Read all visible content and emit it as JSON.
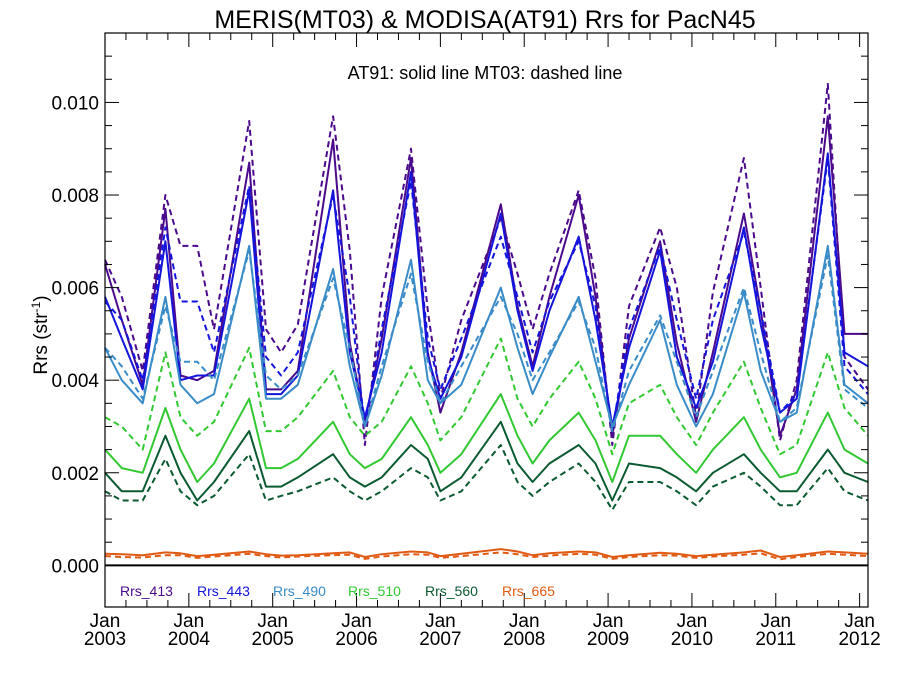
{
  "chart_data": {
    "type": "line",
    "title": "MERIS(MT03) & MODISA(AT91)  Rrs for PacN45",
    "ylabel_main": "Rrs (str",
    "ylabel_sup": "-1",
    "ylabel_close": ")",
    "annotation": "AT91: solid line   MT03: dashed line",
    "ylim": [
      -0.0009,
      0.0115
    ],
    "yticks": [
      "0.000",
      "0.002",
      "0.004",
      "0.006",
      "0.008",
      "0.010"
    ],
    "ytick_values": [
      0,
      0.002,
      0.004,
      0.006,
      0.008,
      0.01
    ],
    "xlim": [
      2003.0,
      2012.1
    ],
    "xticks": [
      {
        "month": "Jan",
        "year": "2003",
        "value": 2003
      },
      {
        "month": "Jan",
        "year": "2004",
        "value": 2004
      },
      {
        "month": "Jan",
        "year": "2005",
        "value": 2005
      },
      {
        "month": "Jan",
        "year": "2006",
        "value": 2006
      },
      {
        "month": "Jan",
        "year": "2007",
        "value": 2007
      },
      {
        "month": "Jan",
        "year": "2008",
        "value": 2008
      },
      {
        "month": "Jan",
        "year": "2009",
        "value": 2009
      },
      {
        "month": "Jan",
        "year": "2010",
        "value": 2010
      },
      {
        "month": "Jan",
        "year": "2011",
        "value": 2011
      },
      {
        "month": "Jan",
        "year": "2012",
        "value": 2012
      }
    ],
    "grid": false,
    "legend_position": "bottom-left",
    "series": [
      {
        "name": "Rrs_413",
        "color": "#4b0a8c",
        "x": [
          2003.0,
          2003.2,
          2003.45,
          2003.72,
          2003.9,
          2004.1,
          2004.3,
          2004.72,
          2004.92,
          2005.1,
          2005.3,
          2005.72,
          2005.92,
          2006.1,
          2006.3,
          2006.65,
          2006.85,
          2007.0,
          2007.25,
          2007.72,
          2007.92,
          2008.1,
          2008.3,
          2008.65,
          2008.85,
          2009.05,
          2009.25,
          2009.62,
          2009.82,
          2010.05,
          2010.25,
          2010.62,
          2010.82,
          2011.05,
          2011.25,
          2011.62,
          2011.82,
          2012.1
        ],
        "solid": [
          0.0065,
          0.0053,
          0.0039,
          0.0077,
          0.0041,
          0.004,
          0.0042,
          0.0087,
          0.0038,
          0.0038,
          0.0042,
          0.0092,
          0.0048,
          0.0031,
          0.0049,
          0.0088,
          0.0046,
          0.0033,
          0.0046,
          0.0078,
          0.0056,
          0.0043,
          0.0058,
          0.008,
          0.0058,
          0.0028,
          0.0049,
          0.007,
          0.0048,
          0.0031,
          0.0046,
          0.0076,
          0.0055,
          0.0028,
          0.0038,
          0.0097,
          0.005,
          0.005
        ],
        "dashed": [
          0.0066,
          0.0058,
          0.0042,
          0.008,
          0.0069,
          0.0069,
          0.0051,
          0.0096,
          0.0051,
          0.0046,
          0.0052,
          0.0097,
          0.0068,
          0.0026,
          0.0058,
          0.009,
          0.0055,
          0.0036,
          0.0053,
          0.0075,
          0.0063,
          0.0051,
          0.0063,
          0.0081,
          0.0062,
          0.0026,
          0.0056,
          0.0073,
          0.006,
          0.0032,
          0.0059,
          0.0088,
          0.006,
          0.0027,
          0.004,
          0.0104,
          0.0045,
          0.0038
        ]
      },
      {
        "name": "Rrs_443",
        "color": "#1414dc",
        "x": [
          2003.0,
          2003.2,
          2003.45,
          2003.72,
          2003.9,
          2004.1,
          2004.3,
          2004.72,
          2004.92,
          2005.1,
          2005.3,
          2005.72,
          2005.92,
          2006.1,
          2006.3,
          2006.65,
          2006.85,
          2007.0,
          2007.25,
          2007.72,
          2007.92,
          2008.1,
          2008.3,
          2008.65,
          2008.85,
          2009.05,
          2009.25,
          2009.62,
          2009.82,
          2010.05,
          2010.25,
          2010.62,
          2010.82,
          2011.05,
          2011.25,
          2011.62,
          2011.82,
          2012.1
        ],
        "solid": [
          0.0058,
          0.0049,
          0.0038,
          0.007,
          0.004,
          0.0041,
          0.0041,
          0.0081,
          0.0037,
          0.0037,
          0.0041,
          0.0081,
          0.0046,
          0.0032,
          0.0046,
          0.0085,
          0.0045,
          0.0036,
          0.0045,
          0.0076,
          0.0055,
          0.0042,
          0.0055,
          0.0071,
          0.0053,
          0.003,
          0.0047,
          0.0068,
          0.0045,
          0.0034,
          0.0044,
          0.0073,
          0.0052,
          0.0033,
          0.0036,
          0.0089,
          0.0046,
          0.0043
        ],
        "dashed": [
          0.0057,
          0.0053,
          0.004,
          0.0073,
          0.0057,
          0.0057,
          0.0046,
          0.0082,
          0.0045,
          0.0041,
          0.0046,
          0.008,
          0.0058,
          0.003,
          0.0051,
          0.0083,
          0.0049,
          0.0038,
          0.0049,
          0.0071,
          0.0058,
          0.0046,
          0.0057,
          0.007,
          0.0056,
          0.0029,
          0.0051,
          0.0069,
          0.0053,
          0.0036,
          0.0053,
          0.0072,
          0.0055,
          0.0033,
          0.0037,
          0.0088,
          0.0043,
          0.0037
        ]
      },
      {
        "name": "Rrs_490",
        "color": "#3a8cc8",
        "x": [
          2003.0,
          2003.2,
          2003.45,
          2003.72,
          2003.9,
          2004.1,
          2004.3,
          2004.72,
          2004.92,
          2005.1,
          2005.3,
          2005.72,
          2005.92,
          2006.1,
          2006.3,
          2006.65,
          2006.85,
          2007.0,
          2007.25,
          2007.72,
          2007.92,
          2008.1,
          2008.3,
          2008.65,
          2008.85,
          2009.05,
          2009.25,
          2009.62,
          2009.82,
          2010.05,
          2010.25,
          2010.62,
          2010.82,
          2011.05,
          2011.25,
          2011.62,
          2011.82,
          2012.1
        ],
        "solid": [
          0.0047,
          0.004,
          0.0035,
          0.0058,
          0.0039,
          0.0035,
          0.0037,
          0.0069,
          0.0036,
          0.0036,
          0.0039,
          0.0064,
          0.0043,
          0.003,
          0.0041,
          0.0066,
          0.004,
          0.0035,
          0.0039,
          0.006,
          0.0047,
          0.0037,
          0.0045,
          0.0058,
          0.0044,
          0.003,
          0.0039,
          0.0053,
          0.0039,
          0.003,
          0.0037,
          0.0059,
          0.0042,
          0.0031,
          0.0033,
          0.0069,
          0.0039,
          0.0035
        ],
        "dashed": [
          0.0047,
          0.0043,
          0.0036,
          0.0056,
          0.0044,
          0.0044,
          0.004,
          0.0068,
          0.0041,
          0.0038,
          0.0041,
          0.0062,
          0.0047,
          0.003,
          0.0043,
          0.0063,
          0.0044,
          0.0035,
          0.0043,
          0.0058,
          0.005,
          0.004,
          0.0046,
          0.0057,
          0.0047,
          0.0029,
          0.0042,
          0.0054,
          0.0044,
          0.0032,
          0.0042,
          0.006,
          0.0046,
          0.0031,
          0.0034,
          0.0067,
          0.0038,
          0.0034
        ]
      },
      {
        "name": "Rrs_510",
        "color": "#32c832",
        "x": [
          2003.0,
          2003.2,
          2003.45,
          2003.72,
          2003.9,
          2004.1,
          2004.3,
          2004.72,
          2004.92,
          2005.1,
          2005.3,
          2005.72,
          2005.92,
          2006.1,
          2006.3,
          2006.65,
          2006.85,
          2007.0,
          2007.25,
          2007.72,
          2007.92,
          2008.1,
          2008.3,
          2008.65,
          2008.85,
          2009.05,
          2009.25,
          2009.62,
          2009.82,
          2010.05,
          2010.25,
          2010.62,
          2010.82,
          2011.05,
          2011.25,
          2011.62,
          2011.82,
          2012.1
        ],
        "solid": [
          0.0025,
          0.0021,
          0.002,
          0.0034,
          0.0025,
          0.0018,
          0.0022,
          0.0036,
          0.0021,
          0.0021,
          0.0023,
          0.0031,
          0.0024,
          0.0021,
          0.0023,
          0.0032,
          0.0026,
          0.002,
          0.0024,
          0.0037,
          0.0028,
          0.0022,
          0.0027,
          0.0033,
          0.0027,
          0.0018,
          0.0028,
          0.0028,
          0.0024,
          0.002,
          0.0025,
          0.0032,
          0.0025,
          0.0019,
          0.002,
          0.0033,
          0.0025,
          0.0022
        ],
        "dashed": [
          0.0032,
          0.003,
          0.0025,
          0.0046,
          0.0032,
          0.0028,
          0.0031,
          0.0047,
          0.0029,
          0.0029,
          0.0032,
          0.0042,
          0.0032,
          0.0028,
          0.0031,
          0.0043,
          0.0035,
          0.0027,
          0.0032,
          0.0049,
          0.0036,
          0.003,
          0.0036,
          0.0044,
          0.0036,
          0.0024,
          0.0035,
          0.0039,
          0.0032,
          0.0026,
          0.0033,
          0.0044,
          0.0034,
          0.0024,
          0.0026,
          0.0046,
          0.0034,
          0.0028
        ]
      },
      {
        "name": "Rrs_560",
        "color": "#0a5a32",
        "x": [
          2003.0,
          2003.2,
          2003.45,
          2003.72,
          2003.9,
          2004.1,
          2004.3,
          2004.72,
          2004.92,
          2005.1,
          2005.3,
          2005.72,
          2005.92,
          2006.1,
          2006.3,
          2006.65,
          2006.85,
          2007.0,
          2007.25,
          2007.72,
          2007.92,
          2008.1,
          2008.3,
          2008.65,
          2008.85,
          2009.05,
          2009.25,
          2009.62,
          2009.82,
          2010.05,
          2010.25,
          2010.62,
          2010.82,
          2011.05,
          2011.25,
          2011.62,
          2011.82,
          2012.1
        ],
        "solid": [
          0.002,
          0.0016,
          0.0016,
          0.0028,
          0.002,
          0.0014,
          0.0018,
          0.0029,
          0.0017,
          0.0017,
          0.0019,
          0.0024,
          0.0019,
          0.0017,
          0.0019,
          0.0026,
          0.0023,
          0.0016,
          0.0019,
          0.0031,
          0.0022,
          0.0018,
          0.0022,
          0.0026,
          0.0022,
          0.0014,
          0.0022,
          0.0021,
          0.0019,
          0.0016,
          0.002,
          0.0024,
          0.002,
          0.0016,
          0.0016,
          0.0025,
          0.002,
          0.0018
        ],
        "dashed": [
          0.0016,
          0.0014,
          0.0014,
          0.0023,
          0.0016,
          0.0013,
          0.0015,
          0.0024,
          0.0014,
          0.0015,
          0.0016,
          0.0019,
          0.0016,
          0.0014,
          0.0016,
          0.0021,
          0.0019,
          0.0014,
          0.0016,
          0.0026,
          0.0018,
          0.0015,
          0.0018,
          0.0022,
          0.0018,
          0.0012,
          0.0018,
          0.0018,
          0.0016,
          0.0013,
          0.0017,
          0.002,
          0.0017,
          0.0013,
          0.0013,
          0.0021,
          0.0016,
          0.0014
        ]
      },
      {
        "name": "Rrs_665",
        "color": "#e05a14",
        "x": [
          2003.0,
          2003.2,
          2003.45,
          2003.72,
          2003.9,
          2004.1,
          2004.3,
          2004.72,
          2004.92,
          2005.1,
          2005.3,
          2005.72,
          2005.92,
          2006.1,
          2006.3,
          2006.65,
          2006.85,
          2007.0,
          2007.25,
          2007.72,
          2007.92,
          2008.1,
          2008.3,
          2008.65,
          2008.85,
          2009.05,
          2009.25,
          2009.62,
          2009.82,
          2010.05,
          2010.25,
          2010.62,
          2010.82,
          2011.05,
          2011.25,
          2011.62,
          2011.82,
          2012.1
        ],
        "solid": [
          0.00025,
          0.00024,
          0.00022,
          0.00028,
          0.00026,
          0.0002,
          0.00023,
          0.0003,
          0.00024,
          0.00021,
          0.00022,
          0.00026,
          0.00028,
          0.00018,
          0.00024,
          0.0003,
          0.00028,
          0.0002,
          0.00025,
          0.00035,
          0.0003,
          0.00022,
          0.00026,
          0.0003,
          0.00028,
          0.00018,
          0.00022,
          0.00027,
          0.00025,
          0.0002,
          0.00023,
          0.00028,
          0.00032,
          0.00018,
          0.00022,
          0.0003,
          0.00028,
          0.00025
        ],
        "dashed": [
          0.0002,
          0.00018,
          0.00017,
          0.00022,
          0.00022,
          0.00016,
          0.00019,
          0.00025,
          0.0002,
          0.00017,
          0.00019,
          0.00022,
          0.00023,
          0.00014,
          0.00019,
          0.00024,
          0.00023,
          0.00016,
          0.0002,
          0.00028,
          0.00024,
          0.00018,
          0.00021,
          0.00025,
          0.00023,
          0.00014,
          0.00018,
          0.00022,
          0.00021,
          0.00016,
          0.00019,
          0.00023,
          0.00026,
          0.00013,
          0.00018,
          0.00025,
          0.00023,
          0.0002
        ]
      }
    ]
  }
}
